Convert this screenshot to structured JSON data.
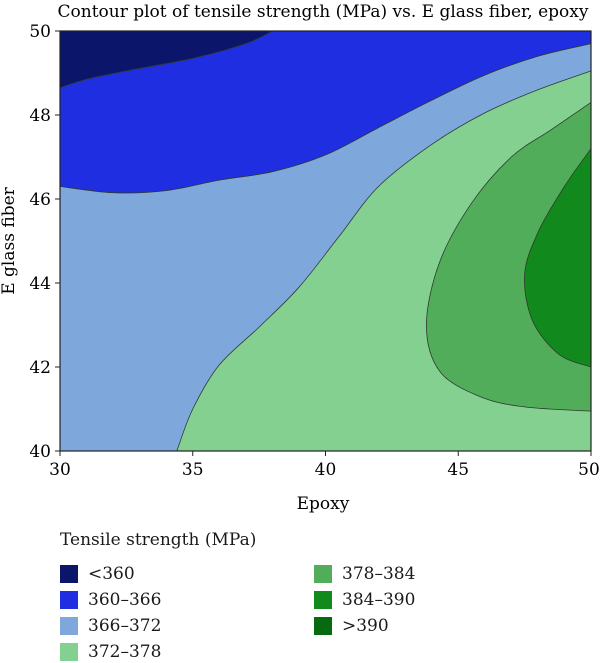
{
  "chart_data": {
    "type": "contour",
    "title": "Contour plot of tensile strength (MPa) vs. E glass fiber, epoxy",
    "xlabel": "Epoxy",
    "ylabel": "E glass fiber",
    "xlim": [
      30,
      50
    ],
    "ylim": [
      40,
      50
    ],
    "xticks": [
      30,
      35,
      40,
      45,
      50
    ],
    "yticks": [
      40,
      42,
      44,
      46,
      48,
      50
    ],
    "grid": false,
    "legend_title": "Tensile strength (MPa)",
    "legend_position": "bottom",
    "levels": [
      {
        "label": "<360",
        "color": "#0b1569"
      },
      {
        "label": "360–366",
        "color": "#1f2ee0"
      },
      {
        "label": "366–372",
        "color": "#7ea7db"
      },
      {
        "label": "372–378",
        "color": "#83d091"
      },
      {
        "label": "378–384",
        "color": "#52ad5b"
      },
      {
        "label": "384–390",
        "color": "#12891d"
      },
      {
        "label": ">390",
        "color": "#076a10"
      }
    ],
    "contours": [
      {
        "level": "360–366",
        "boundary": [
          [
            30,
            48.65
          ],
          [
            31,
            48.85
          ],
          [
            32.5,
            49.05
          ],
          [
            35,
            49.35
          ],
          [
            37,
            49.7
          ],
          [
            38,
            50
          ]
        ]
      },
      {
        "level": "366–372",
        "boundary": [
          [
            30,
            46.3
          ],
          [
            32,
            46.15
          ],
          [
            34,
            46.2
          ],
          [
            36,
            46.45
          ],
          [
            38,
            46.65
          ],
          [
            40,
            47.05
          ],
          [
            42,
            47.7
          ],
          [
            44,
            48.35
          ],
          [
            46,
            48.95
          ],
          [
            48,
            49.4
          ],
          [
            50,
            49.7
          ]
        ]
      },
      {
        "level": "372–378",
        "boundary": [
          [
            34.4,
            40
          ],
          [
            35,
            41
          ],
          [
            36,
            42.05
          ],
          [
            37.5,
            42.95
          ],
          [
            39,
            43.9
          ],
          [
            40.5,
            45.1
          ],
          [
            42,
            46.3
          ],
          [
            44,
            47.3
          ],
          [
            46,
            48.05
          ],
          [
            48,
            48.6
          ],
          [
            50,
            49.05
          ]
        ]
      },
      {
        "level": "378–384",
        "boundary": [
          [
            50,
            48.3
          ],
          [
            48.5,
            47.65
          ],
          [
            47,
            47
          ],
          [
            45.5,
            45.9
          ],
          [
            44.3,
            44.5
          ],
          [
            43.8,
            43
          ],
          [
            44.3,
            41.9
          ],
          [
            45.8,
            41.3
          ],
          [
            47.5,
            41.05
          ],
          [
            50,
            40.95
          ]
        ]
      },
      {
        "level": "384–390",
        "boundary": [
          [
            50,
            47.2
          ],
          [
            49,
            46.3
          ],
          [
            48,
            45.2
          ],
          [
            47.5,
            44.2
          ],
          [
            47.8,
            43.1
          ],
          [
            48.8,
            42.3
          ],
          [
            50,
            42
          ]
        ]
      }
    ]
  }
}
